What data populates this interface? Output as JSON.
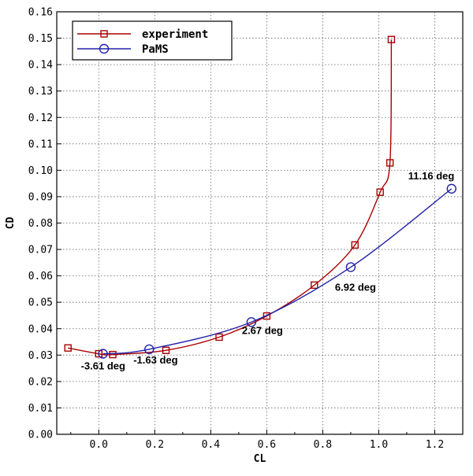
{
  "chart_data": {
    "type": "line",
    "xlabel": "CL",
    "ylabel": "CD",
    "xlim": [
      -0.15,
      1.3
    ],
    "ylim": [
      0,
      0.16
    ],
    "grid": true,
    "legend_position": "top-left",
    "x_ticks": [
      "0.0",
      "0.2",
      "0.4",
      "0.6",
      "0.8",
      "1.0",
      "1.2"
    ],
    "y_ticks": [
      "0.00",
      "0.01",
      "0.02",
      "0.03",
      "0.04",
      "0.05",
      "0.06",
      "0.07",
      "0.08",
      "0.09",
      "0.10",
      "0.11",
      "0.12",
      "0.13",
      "0.14",
      "0.15",
      "0.16"
    ],
    "series": [
      {
        "name": "experiment",
        "color": "#aa0000",
        "marker": "square",
        "points": [
          [
            -0.11,
            0.0327
          ],
          [
            0.0,
            0.0305
          ],
          [
            0.05,
            0.0302
          ],
          [
            0.24,
            0.0318
          ],
          [
            0.43,
            0.0368
          ],
          [
            0.6,
            0.0448
          ],
          [
            0.77,
            0.0565
          ],
          [
            0.915,
            0.0717
          ],
          [
            1.005,
            0.0917
          ],
          [
            1.04,
            0.1028
          ],
          [
            1.045,
            0.1495
          ]
        ]
      },
      {
        "name": "PaMS",
        "color": "#2222aa",
        "marker": "circle",
        "points": [
          [
            0.015,
            0.0305
          ],
          [
            0.18,
            0.0322
          ],
          [
            0.545,
            0.0425
          ],
          [
            0.9,
            0.0633
          ],
          [
            1.26,
            0.093
          ]
        ]
      }
    ],
    "annotations": [
      {
        "text": "-3.61 deg",
        "x": 0.015,
        "y": 0.0305
      },
      {
        "text": "-1.63 deg",
        "x": 0.18,
        "y": 0.0322
      },
      {
        "text": "2.67 deg",
        "x": 0.545,
        "y": 0.0425
      },
      {
        "text": "6.92 deg",
        "x": 0.9,
        "y": 0.0633
      },
      {
        "text": "11.16 deg",
        "x": 1.26,
        "y": 0.093
      }
    ]
  }
}
